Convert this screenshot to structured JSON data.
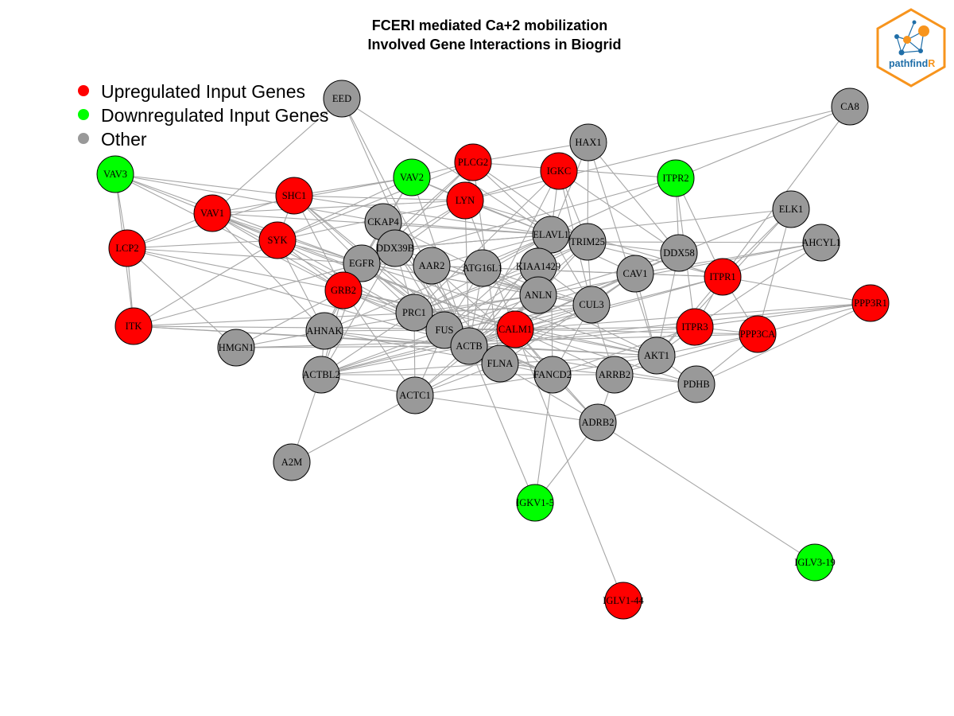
{
  "title": {
    "line1": "FCERI mediated Ca+2 mobilization",
    "line2": "Involved Gene Interactions in Biogrid"
  },
  "legend": {
    "items": [
      {
        "label": "Upregulated Input Genes",
        "color": "#ff0000"
      },
      {
        "label": "Downregulated Input Genes",
        "color": "#00ff00"
      },
      {
        "label": "Other",
        "color": "#999999"
      }
    ]
  },
  "logo": {
    "text_main": "pathfind",
    "text_accent": "R",
    "border_color": "#f7941d",
    "text_color": "#1f6ea8",
    "accent_color": "#f7941d"
  },
  "colors": {
    "up": "#ff0000",
    "down": "#00ff00",
    "other": "#999999",
    "edge": "#a6a6a6"
  },
  "nodes": [
    {
      "id": "EED",
      "status": "other"
    },
    {
      "id": "CA8",
      "status": "other"
    },
    {
      "id": "HAX1",
      "status": "other"
    },
    {
      "id": "PLCG2",
      "status": "up"
    },
    {
      "id": "IGKC",
      "status": "up"
    },
    {
      "id": "ITPR2",
      "status": "down"
    },
    {
      "id": "VAV3",
      "status": "down"
    },
    {
      "id": "VAV2",
      "status": "down"
    },
    {
      "id": "SHC1",
      "status": "up"
    },
    {
      "id": "LYN",
      "status": "up"
    },
    {
      "id": "ELK1",
      "status": "other"
    },
    {
      "id": "VAV1",
      "status": "up"
    },
    {
      "id": "CKAP4",
      "status": "other"
    },
    {
      "id": "ELAVL1",
      "status": "other"
    },
    {
      "id": "TRIM25",
      "status": "other"
    },
    {
      "id": "AHCYL1",
      "status": "other"
    },
    {
      "id": "LCP2",
      "status": "up"
    },
    {
      "id": "SYK",
      "status": "up"
    },
    {
      "id": "DDX39B",
      "status": "other"
    },
    {
      "id": "DDX58",
      "status": "other"
    },
    {
      "id": "EGFR",
      "status": "other"
    },
    {
      "id": "AAR2",
      "status": "other"
    },
    {
      "id": "ATG16L1",
      "status": "other"
    },
    {
      "id": "KIAA1429",
      "status": "other"
    },
    {
      "id": "CAV1",
      "status": "other"
    },
    {
      "id": "ITPR1",
      "status": "up"
    },
    {
      "id": "GRB2",
      "status": "up"
    },
    {
      "id": "ANLN",
      "status": "other"
    },
    {
      "id": "PPP3R1",
      "status": "up"
    },
    {
      "id": "CUL3",
      "status": "other"
    },
    {
      "id": "PRC1",
      "status": "other"
    },
    {
      "id": "ITK",
      "status": "up"
    },
    {
      "id": "AHNAK",
      "status": "other"
    },
    {
      "id": "FUS",
      "status": "other"
    },
    {
      "id": "CALM1",
      "status": "up"
    },
    {
      "id": "ITPR3",
      "status": "up"
    },
    {
      "id": "PPP3CA",
      "status": "up"
    },
    {
      "id": "HMGN1",
      "status": "other"
    },
    {
      "id": "ACTB",
      "status": "other"
    },
    {
      "id": "AKT1",
      "status": "other"
    },
    {
      "id": "FLNA",
      "status": "other"
    },
    {
      "id": "ACTBL2",
      "status": "other"
    },
    {
      "id": "FANCD2",
      "status": "other"
    },
    {
      "id": "ARRB2",
      "status": "other"
    },
    {
      "id": "PDHB",
      "status": "other"
    },
    {
      "id": "ACTC1",
      "status": "other"
    },
    {
      "id": "ADRB2",
      "status": "other"
    },
    {
      "id": "A2M",
      "status": "other"
    },
    {
      "id": "IGKV1-5",
      "status": "down"
    },
    {
      "id": "IGLV3-19",
      "status": "down"
    },
    {
      "id": "IGLV1-44",
      "status": "up"
    }
  ],
  "edges": [
    [
      "EED",
      "ELAVL1"
    ],
    [
      "EED",
      "VAV1"
    ],
    [
      "EED",
      "FUS"
    ],
    [
      "EED",
      "ACTB"
    ],
    [
      "CA8",
      "ITPR2"
    ],
    [
      "CA8",
      "ITPR1"
    ],
    [
      "CA8",
      "LYN"
    ],
    [
      "HAX1",
      "PLCG2"
    ],
    [
      "HAX1",
      "ELAVL1"
    ],
    [
      "HAX1",
      "TRIM25"
    ],
    [
      "HAX1",
      "AKT1"
    ],
    [
      "HAX1",
      "DDX58"
    ],
    [
      "PLCG2",
      "VAV2"
    ],
    [
      "PLCG2",
      "LYN"
    ],
    [
      "PLCG2",
      "SYK"
    ],
    [
      "PLCG2",
      "ELAVL1"
    ],
    [
      "PLCG2",
      "GRB2"
    ],
    [
      "PLCG2",
      "FLNA"
    ],
    [
      "PLCG2",
      "TRIM25"
    ],
    [
      "PLCG2",
      "EGFR"
    ],
    [
      "PLCG2",
      "ITPR2"
    ],
    [
      "IGKC",
      "ELAVL1"
    ],
    [
      "IGKC",
      "TRIM25"
    ],
    [
      "IGKC",
      "CUL3"
    ],
    [
      "IGKC",
      "DDX58"
    ],
    [
      "IGKC",
      "LYN"
    ],
    [
      "IGKC",
      "PRC1"
    ],
    [
      "IGKC",
      "ACTB"
    ],
    [
      "ITPR2",
      "ITPR1"
    ],
    [
      "ITPR2",
      "ELAVL1"
    ],
    [
      "ITPR2",
      "EGFR"
    ],
    [
      "ITPR2",
      "DDX58"
    ],
    [
      "ITPR2",
      "ITPR3"
    ],
    [
      "VAV3",
      "SHC1"
    ],
    [
      "VAV3",
      "GRB2"
    ],
    [
      "VAV3",
      "EGFR"
    ],
    [
      "VAV3",
      "LCP2"
    ],
    [
      "VAV3",
      "SYK"
    ],
    [
      "VAV3",
      "CKAP4"
    ],
    [
      "VAV3",
      "ITK"
    ],
    [
      "VAV2",
      "EGFR"
    ],
    [
      "VAV2",
      "GRB2"
    ],
    [
      "VAV2",
      "SYK"
    ],
    [
      "VAV2",
      "VAV1"
    ],
    [
      "VAV2",
      "SHC1"
    ],
    [
      "VAV2",
      "ELAVL1"
    ],
    [
      "VAV2",
      "ACTB"
    ],
    [
      "VAV2",
      "LYN"
    ],
    [
      "SHC1",
      "GRB2"
    ],
    [
      "SHC1",
      "EGFR"
    ],
    [
      "SHC1",
      "SYK"
    ],
    [
      "SHC1",
      "LYN"
    ],
    [
      "SHC1",
      "ELAVL1"
    ],
    [
      "SHC1",
      "LCP2"
    ],
    [
      "SHC1",
      "ACTB"
    ],
    [
      "SHC1",
      "FLNA"
    ],
    [
      "LYN",
      "SYK"
    ],
    [
      "LYN",
      "VAV1"
    ],
    [
      "LYN",
      "GRB2"
    ],
    [
      "LYN",
      "EGFR"
    ],
    [
      "LYN",
      "ELAVL1"
    ],
    [
      "LYN",
      "ACTB"
    ],
    [
      "LYN",
      "CALM1"
    ],
    [
      "LYN",
      "ITPR1"
    ],
    [
      "ELK1",
      "ITPR1"
    ],
    [
      "ELK1",
      "ELAVL1"
    ],
    [
      "ELK1",
      "DDX58"
    ],
    [
      "ELK1",
      "AKT1"
    ],
    [
      "ELK1",
      "PPP3CA"
    ],
    [
      "VAV1",
      "SYK"
    ],
    [
      "VAV1",
      "LCP2"
    ],
    [
      "VAV1",
      "GRB2"
    ],
    [
      "VAV1",
      "EGFR"
    ],
    [
      "VAV1",
      "ELAVL1"
    ],
    [
      "VAV1",
      "AHNAK"
    ],
    [
      "VAV1",
      "ACTB"
    ],
    [
      "VAV1",
      "CALM1"
    ],
    [
      "CKAP4",
      "ELAVL1"
    ],
    [
      "CKAP4",
      "EGFR"
    ],
    [
      "CKAP4",
      "ACTB"
    ],
    [
      "CKAP4",
      "FLNA"
    ],
    [
      "CKAP4",
      "AKT1"
    ],
    [
      "ELAVL1",
      "TRIM25"
    ],
    [
      "ELAVL1",
      "KIAA1429"
    ],
    [
      "ELAVL1",
      "DDX39B"
    ],
    [
      "ELAVL1",
      "AAR2"
    ],
    [
      "ELAVL1",
      "ANLN"
    ],
    [
      "ELAVL1",
      "CAV1"
    ],
    [
      "ELAVL1",
      "CUL3"
    ],
    [
      "ELAVL1",
      "ACTB"
    ],
    [
      "ELAVL1",
      "FUS"
    ],
    [
      "ELAVL1",
      "PRC1"
    ],
    [
      "ELAVL1",
      "AHNAK"
    ],
    [
      "ELAVL1",
      "ATG16L1"
    ],
    [
      "ELAVL1",
      "ITPR1"
    ],
    [
      "ELAVL1",
      "FANCD2"
    ],
    [
      "ELAVL1",
      "CALM1"
    ],
    [
      "TRIM25",
      "DDX58"
    ],
    [
      "TRIM25",
      "KIAA1429"
    ],
    [
      "TRIM25",
      "ANLN"
    ],
    [
      "TRIM25",
      "CUL3"
    ],
    [
      "TRIM25",
      "ACTB"
    ],
    [
      "TRIM25",
      "AHCYL1"
    ],
    [
      "TRIM25",
      "PRC1"
    ],
    [
      "AHCYL1",
      "ITPR1"
    ],
    [
      "AHCYL1",
      "ITPR3"
    ],
    [
      "AHCYL1",
      "CAV1"
    ],
    [
      "AHCYL1",
      "ANLN"
    ],
    [
      "LCP2",
      "SYK"
    ],
    [
      "LCP2",
      "GRB2"
    ],
    [
      "LCP2",
      "ITK"
    ],
    [
      "LCP2",
      "HMGN1"
    ],
    [
      "LCP2",
      "EGFR"
    ],
    [
      "LCP2",
      "ACTB"
    ],
    [
      "SYK",
      "GRB2"
    ],
    [
      "SYK",
      "EGFR"
    ],
    [
      "SYK",
      "ITK"
    ],
    [
      "SYK",
      "ACTB"
    ],
    [
      "SYK",
      "CALM1"
    ],
    [
      "SYK",
      "AHNAK"
    ],
    [
      "DDX39B",
      "ELAVL1"
    ],
    [
      "DDX39B",
      "ACTB"
    ],
    [
      "DDX39B",
      "FUS"
    ],
    [
      "DDX39B",
      "ANLN"
    ],
    [
      "DDX39B",
      "PRC1"
    ],
    [
      "DDX39B",
      "ACTBL2"
    ],
    [
      "DDX58",
      "CAV1"
    ],
    [
      "DDX58",
      "ANLN"
    ],
    [
      "DDX58",
      "ACTB"
    ],
    [
      "DDX58",
      "AKT1"
    ],
    [
      "EGFR",
      "GRB2"
    ],
    [
      "EGFR",
      "CAV1"
    ],
    [
      "EGFR",
      "AKT1"
    ],
    [
      "EGFR",
      "ACTB"
    ],
    [
      "EGFR",
      "CUL3"
    ],
    [
      "EGFR",
      "ITK"
    ],
    [
      "EGFR",
      "AHNAK"
    ],
    [
      "EGFR",
      "ANLN"
    ],
    [
      "EGFR",
      "FLNA"
    ],
    [
      "EGFR",
      "PRC1"
    ],
    [
      "EGFR",
      "ITPR1"
    ],
    [
      "EGFR",
      "ACTBL2"
    ],
    [
      "AAR2",
      "ACTB"
    ],
    [
      "AAR2",
      "ANLN"
    ],
    [
      "AAR2",
      "CUL3"
    ],
    [
      "AAR2",
      "FANCD2"
    ],
    [
      "ATG16L1",
      "ACTB"
    ],
    [
      "ATG16L1",
      "CUL3"
    ],
    [
      "ATG16L1",
      "ANLN"
    ],
    [
      "ATG16L1",
      "FUS"
    ],
    [
      "KIAA1429",
      "ANLN"
    ],
    [
      "KIAA1429",
      "ACTB"
    ],
    [
      "KIAA1429",
      "CUL3"
    ],
    [
      "KIAA1429",
      "FUS"
    ],
    [
      "KIAA1429",
      "PRC1"
    ],
    [
      "KIAA1429",
      "FLNA"
    ],
    [
      "CAV1",
      "CUL3"
    ],
    [
      "CAV1",
      "AKT1"
    ],
    [
      "CAV1",
      "ACTB"
    ],
    [
      "CAV1",
      "ITPR1"
    ],
    [
      "CAV1",
      "FLNA"
    ],
    [
      "CAV1",
      "ACTBL2"
    ],
    [
      "ITPR1",
      "ITPR3"
    ],
    [
      "ITPR1",
      "PPP3CA"
    ],
    [
      "ITPR1",
      "PPP3R1"
    ],
    [
      "ITPR1",
      "CALM1"
    ],
    [
      "ITPR1",
      "AKT1"
    ],
    [
      "ITPR1",
      "ACTB"
    ],
    [
      "GRB2",
      "AHNAK"
    ],
    [
      "GRB2",
      "ACTB"
    ],
    [
      "GRB2",
      "CALM1"
    ],
    [
      "GRB2",
      "HMGN1"
    ],
    [
      "GRB2",
      "PRC1"
    ],
    [
      "GRB2",
      "AKT1"
    ],
    [
      "GRB2",
      "ACTBL2"
    ],
    [
      "GRB2",
      "ACTC1"
    ],
    [
      "GRB2",
      "FUS"
    ],
    [
      "ANLN",
      "ACTB"
    ],
    [
      "ANLN",
      "CUL3"
    ],
    [
      "ANLN",
      "PRC1"
    ],
    [
      "ANLN",
      "ACTBL2"
    ],
    [
      "ANLN",
      "AHNAK"
    ],
    [
      "ANLN",
      "ACTC1"
    ],
    [
      "PPP3R1",
      "PPP3CA"
    ],
    [
      "PPP3R1",
      "CALM1"
    ],
    [
      "PPP3R1",
      "PDHB"
    ],
    [
      "PPP3R1",
      "ITPR3"
    ],
    [
      "PPP3R1",
      "ACTB"
    ],
    [
      "CUL3",
      "ACTB"
    ],
    [
      "CUL3",
      "FANCD2"
    ],
    [
      "CUL3",
      "ARRB2"
    ],
    [
      "CUL3",
      "ITK"
    ],
    [
      "CUL3",
      "PRC1"
    ],
    [
      "CUL3",
      "FUS"
    ],
    [
      "CUL3",
      "ACTC1"
    ],
    [
      "CUL3",
      "ACTBL2"
    ],
    [
      "PRC1",
      "ACTB"
    ],
    [
      "PRC1",
      "FUS"
    ],
    [
      "PRC1",
      "ACTC1"
    ],
    [
      "PRC1",
      "ACTBL2"
    ],
    [
      "PRC1",
      "FANCD2"
    ],
    [
      "ITK",
      "ACTB"
    ],
    [
      "ITK",
      "CALM1"
    ],
    [
      "ITK",
      "AKT1"
    ],
    [
      "AHNAK",
      "ACTB"
    ],
    [
      "AHNAK",
      "HMGN1"
    ],
    [
      "AHNAK",
      "CALM1"
    ],
    [
      "AHNAK",
      "FLNA"
    ],
    [
      "AHNAK",
      "ACTBL2"
    ],
    [
      "FUS",
      "ACTB"
    ],
    [
      "FUS",
      "ACTC1"
    ],
    [
      "FUS",
      "CALM1"
    ],
    [
      "FUS",
      "FANCD2"
    ],
    [
      "CALM1",
      "ITPR3"
    ],
    [
      "CALM1",
      "PPP3CA"
    ],
    [
      "CALM1",
      "ACTB"
    ],
    [
      "CALM1",
      "ARRB2"
    ],
    [
      "CALM1",
      "FLNA"
    ],
    [
      "CALM1",
      "PDHB"
    ],
    [
      "CALM1",
      "AKT1"
    ],
    [
      "CALM1",
      "FANCD2"
    ],
    [
      "CALM1",
      "ADRB2"
    ],
    [
      "CALM1",
      "ACTBL2"
    ],
    [
      "CALM1",
      "IGLV1-44"
    ],
    [
      "ITPR3",
      "PPP3CA"
    ],
    [
      "ITPR3",
      "AKT1"
    ],
    [
      "ITPR3",
      "ACTB"
    ],
    [
      "ITPR3",
      "FANCD2"
    ],
    [
      "PPP3CA",
      "PDHB"
    ],
    [
      "PPP3CA",
      "AKT1"
    ],
    [
      "PPP3CA",
      "ARRB2"
    ],
    [
      "PPP3CA",
      "HMGN1"
    ],
    [
      "HMGN1",
      "ACTB"
    ],
    [
      "ACTB",
      "FLNA"
    ],
    [
      "ACTB",
      "ACTBL2"
    ],
    [
      "ACTB",
      "ACTC1"
    ],
    [
      "ACTB",
      "AKT1"
    ],
    [
      "ACTB",
      "FANCD2"
    ],
    [
      "ACTB",
      "ADRB2"
    ],
    [
      "ACTB",
      "IGKV1-5"
    ],
    [
      "ACTB",
      "PDHB"
    ],
    [
      "AKT1",
      "FANCD2"
    ],
    [
      "AKT1",
      "ARRB2"
    ],
    [
      "AKT1",
      "PDHB"
    ],
    [
      "AKT1",
      "FLNA"
    ],
    [
      "FLNA",
      "ACTBL2"
    ],
    [
      "FLNA",
      "FANCD2"
    ],
    [
      "FLNA",
      "ARRB2"
    ],
    [
      "FLNA",
      "ACTC1"
    ],
    [
      "ACTBL2",
      "ACTC1"
    ],
    [
      "ACTBL2",
      "A2M"
    ],
    [
      "ACTBL2",
      "FANCD2"
    ],
    [
      "FANCD2",
      "ARRB2"
    ],
    [
      "FANCD2",
      "ADRB2"
    ],
    [
      "FANCD2",
      "IGKV1-5"
    ],
    [
      "FANCD2",
      "ACTC1"
    ],
    [
      "ARRB2",
      "ADRB2"
    ],
    [
      "ARRB2",
      "PDHB"
    ],
    [
      "PDHB",
      "ADRB2"
    ],
    [
      "ACTC1",
      "A2M"
    ],
    [
      "ACTC1",
      "ADRB2"
    ],
    [
      "ADRB2",
      "IGKV1-5"
    ],
    [
      "ADRB2",
      "IGLV3-19"
    ]
  ]
}
